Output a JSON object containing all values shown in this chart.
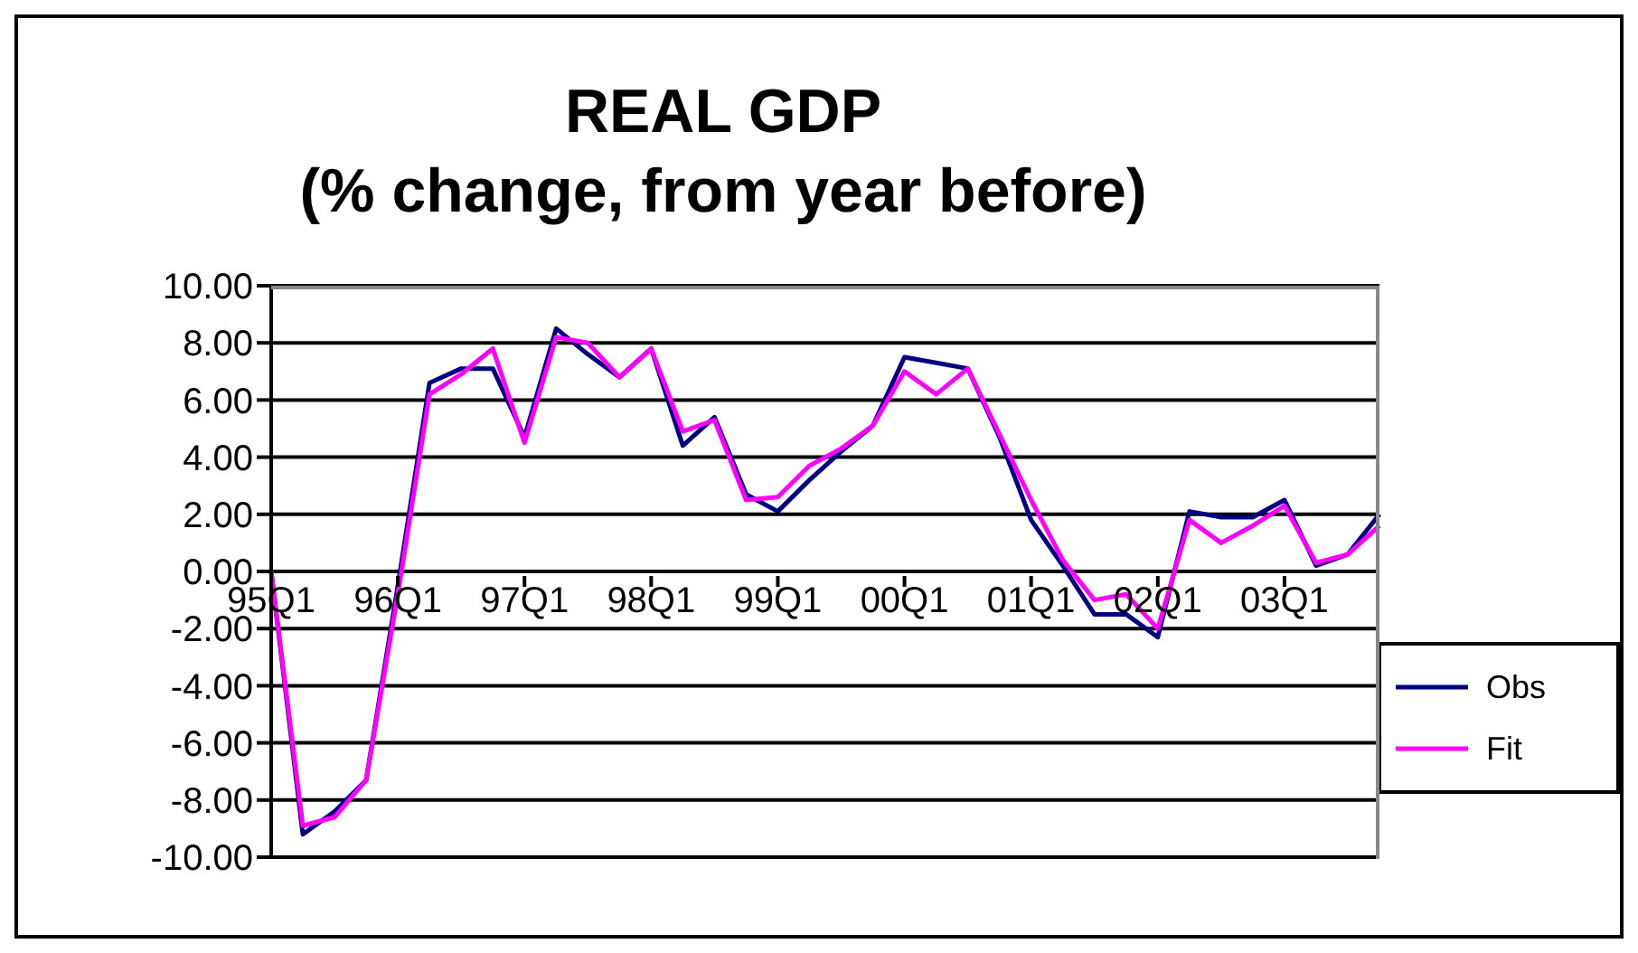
{
  "chart_data": {
    "type": "line",
    "title": "REAL GDP",
    "subtitle": "(% change, from year before)",
    "categories": [
      "95Q1",
      null,
      null,
      null,
      "96Q1",
      null,
      null,
      null,
      "97Q1",
      null,
      null,
      null,
      "98Q1",
      null,
      null,
      null,
      "99Q1",
      null,
      null,
      null,
      "00Q1",
      null,
      null,
      null,
      "01Q1",
      null,
      null,
      null,
      "02Q1",
      null,
      null,
      null,
      "03Q1",
      null,
      null,
      null
    ],
    "series": [
      {
        "name": "Obs",
        "color": "#000080",
        "values": [
          0.0,
          -9.2,
          -8.4,
          -7.3,
          -0.5,
          6.6,
          7.1,
          7.1,
          4.7,
          8.5,
          7.6,
          6.8,
          7.8,
          4.4,
          5.4,
          2.7,
          2.1,
          3.2,
          4.2,
          5.1,
          7.5,
          7.3,
          7.1,
          4.7,
          1.8,
          0.2,
          -1.5,
          -1.5,
          -2.3,
          2.1,
          1.9,
          1.9,
          2.5,
          0.2,
          0.6,
          2.0
        ]
      },
      {
        "name": "Fit",
        "color": "#ff00ff",
        "values": [
          0.0,
          -8.9,
          -8.6,
          -7.3,
          -0.8,
          6.2,
          6.9,
          7.8,
          4.5,
          8.2,
          8.0,
          6.8,
          7.8,
          4.9,
          5.3,
          2.5,
          2.6,
          3.7,
          4.3,
          5.1,
          7.0,
          6.2,
          7.1,
          4.8,
          2.5,
          0.4,
          -1.0,
          -0.8,
          -2.0,
          1.8,
          1.0,
          1.6,
          2.3,
          0.3,
          0.6,
          1.6
        ]
      }
    ],
    "ylim": [
      -10,
      10
    ],
    "yticks": [
      {
        "value": -10,
        "label": "-10.00"
      },
      {
        "value": -8,
        "label": "-8.00"
      },
      {
        "value": -6,
        "label": "-6.00"
      },
      {
        "value": -4,
        "label": "-4.00"
      },
      {
        "value": -2,
        "label": "-2.00"
      },
      {
        "value": 0,
        "label": "0.00"
      },
      {
        "value": 2,
        "label": "2.00"
      },
      {
        "value": 4,
        "label": "4.00"
      },
      {
        "value": 6,
        "label": "6.00"
      },
      {
        "value": 8,
        "label": "8.00"
      },
      {
        "value": 10,
        "label": "10.00"
      }
    ],
    "grid": "y",
    "legend": "right"
  }
}
